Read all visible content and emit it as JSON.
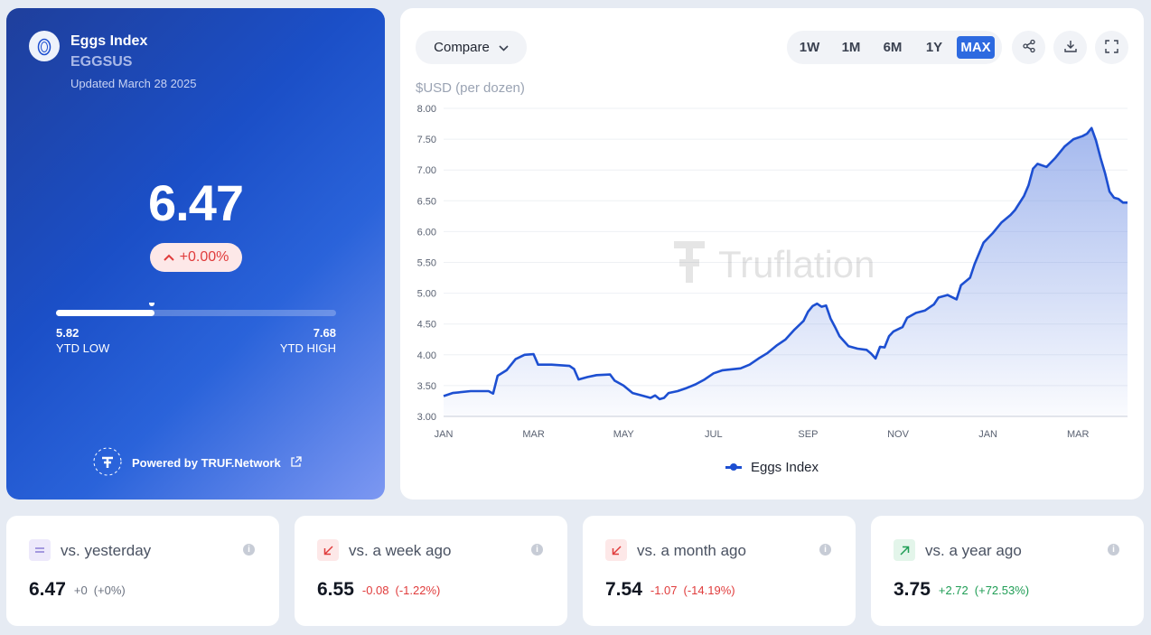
{
  "header": {
    "title": "Eggs Index",
    "ticker": "EGGSUS",
    "updated": "Updated March 28 2025",
    "value": "6.47",
    "change": "+0.00%",
    "range": {
      "low_value": "5.82",
      "low_label": "YTD LOW",
      "high_value": "7.68",
      "high_label": "YTD HIGH",
      "fraction": 0.35
    },
    "powered_by": "Powered by TRUF.Network"
  },
  "toolbar": {
    "compare_label": "Compare",
    "ranges": [
      "1W",
      "1M",
      "6M",
      "1Y",
      "MAX"
    ],
    "active_range": "MAX",
    "icons": [
      "share-icon",
      "download-icon",
      "fullscreen-icon"
    ]
  },
  "chart_data": {
    "type": "area",
    "ylabel": "$USD (per dozen)",
    "ylim": [
      3.0,
      8.0
    ],
    "y_ticks": [
      "8.00",
      "7.50",
      "7.00",
      "6.50",
      "6.00",
      "5.50",
      "5.00",
      "4.50",
      "4.00",
      "3.50",
      "3.00"
    ],
    "x_ticks": [
      "JAN",
      "MAR",
      "MAY",
      "JUL",
      "SEP",
      "NOV",
      "JAN",
      "MAR"
    ],
    "watermark": "Truflation",
    "series": [
      {
        "name": "Eggs Index",
        "color": "#1d4fd1",
        "points": [
          [
            0.0,
            3.33
          ],
          [
            0.1,
            3.38
          ],
          [
            0.3,
            3.41
          ],
          [
            0.5,
            3.41
          ],
          [
            0.55,
            3.37
          ],
          [
            0.6,
            3.66
          ],
          [
            0.7,
            3.75
          ],
          [
            0.8,
            3.93
          ],
          [
            0.9,
            4.0
          ],
          [
            1.0,
            4.01
          ],
          [
            1.05,
            3.84
          ],
          [
            1.2,
            3.84
          ],
          [
            1.4,
            3.82
          ],
          [
            1.45,
            3.77
          ],
          [
            1.5,
            3.6
          ],
          [
            1.6,
            3.64
          ],
          [
            1.7,
            3.67
          ],
          [
            1.85,
            3.68
          ],
          [
            1.9,
            3.58
          ],
          [
            2.0,
            3.5
          ],
          [
            2.1,
            3.38
          ],
          [
            2.2,
            3.34
          ],
          [
            2.3,
            3.3
          ],
          [
            2.35,
            3.34
          ],
          [
            2.4,
            3.28
          ],
          [
            2.45,
            3.3
          ],
          [
            2.5,
            3.38
          ],
          [
            2.6,
            3.41
          ],
          [
            2.7,
            3.46
          ],
          [
            2.8,
            3.52
          ],
          [
            2.9,
            3.6
          ],
          [
            3.0,
            3.7
          ],
          [
            3.1,
            3.75
          ],
          [
            3.3,
            3.78
          ],
          [
            3.4,
            3.84
          ],
          [
            3.5,
            3.94
          ],
          [
            3.6,
            4.03
          ],
          [
            3.7,
            4.15
          ],
          [
            3.8,
            4.25
          ],
          [
            3.9,
            4.41
          ],
          [
            4.0,
            4.55
          ],
          [
            4.05,
            4.7
          ],
          [
            4.1,
            4.79
          ],
          [
            4.15,
            4.83
          ],
          [
            4.2,
            4.78
          ],
          [
            4.25,
            4.8
          ],
          [
            4.3,
            4.59
          ],
          [
            4.35,
            4.45
          ],
          [
            4.4,
            4.3
          ],
          [
            4.5,
            4.14
          ],
          [
            4.6,
            4.1
          ],
          [
            4.7,
            4.08
          ],
          [
            4.75,
            4.02
          ],
          [
            4.8,
            3.94
          ],
          [
            4.85,
            4.13
          ],
          [
            4.9,
            4.12
          ],
          [
            4.95,
            4.3
          ],
          [
            5.0,
            4.38
          ],
          [
            5.1,
            4.45
          ],
          [
            5.15,
            4.6
          ],
          [
            5.25,
            4.68
          ],
          [
            5.35,
            4.72
          ],
          [
            5.45,
            4.82
          ],
          [
            5.5,
            4.93
          ],
          [
            5.6,
            4.97
          ],
          [
            5.7,
            4.9
          ],
          [
            5.75,
            5.13
          ],
          [
            5.85,
            5.25
          ],
          [
            5.9,
            5.47
          ],
          [
            6.0,
            5.82
          ],
          [
            6.1,
            5.97
          ],
          [
            6.2,
            6.15
          ],
          [
            6.3,
            6.27
          ],
          [
            6.35,
            6.35
          ],
          [
            6.45,
            6.58
          ],
          [
            6.5,
            6.75
          ],
          [
            6.55,
            7.02
          ],
          [
            6.6,
            7.1
          ],
          [
            6.7,
            7.05
          ],
          [
            6.8,
            7.2
          ],
          [
            6.9,
            7.38
          ],
          [
            7.0,
            7.5
          ],
          [
            7.1,
            7.55
          ],
          [
            7.15,
            7.59
          ],
          [
            7.2,
            7.68
          ],
          [
            7.25,
            7.48
          ],
          [
            7.3,
            7.2
          ],
          [
            7.35,
            6.95
          ],
          [
            7.4,
            6.65
          ],
          [
            7.45,
            6.55
          ],
          [
            7.5,
            6.53
          ],
          [
            7.55,
            6.47
          ],
          [
            7.6,
            6.47
          ]
        ]
      }
    ],
    "legend": "Eggs Index"
  },
  "stats": [
    {
      "label": "vs. yesterday",
      "value": "6.47",
      "delta": "+0",
      "pct": "(+0%)",
      "trend": "flat",
      "color": "#6b7280"
    },
    {
      "label": "vs. a week ago",
      "value": "6.55",
      "delta": "-0.08",
      "pct": "(-1.22%)",
      "trend": "down",
      "color": "#e03c3c"
    },
    {
      "label": "vs. a month ago",
      "value": "7.54",
      "delta": "-1.07",
      "pct": "(-14.19%)",
      "trend": "down",
      "color": "#e03c3c"
    },
    {
      "label": "vs. a year ago",
      "value": "3.75",
      "delta": "+2.72",
      "pct": "(+72.53%)",
      "trend": "up",
      "color": "#1f9d55"
    }
  ]
}
